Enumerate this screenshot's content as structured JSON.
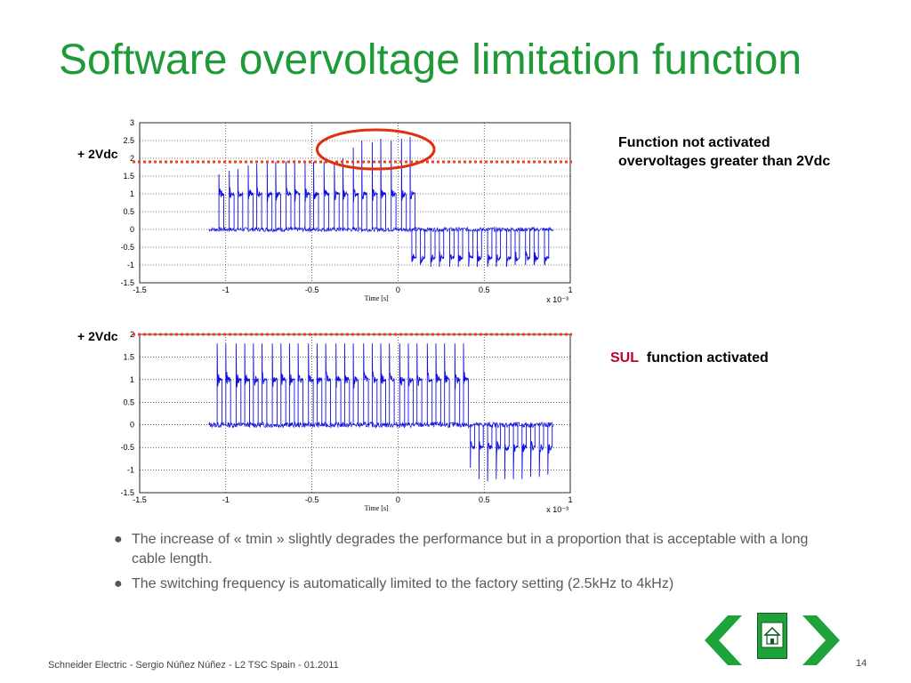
{
  "title": "Software overvoltage limitation function",
  "top_chart_note": {
    "line1": "Function not activated",
    "line2": "overvoltages greater than 2Vdc"
  },
  "bottom_chart_note": {
    "sul": "SUL",
    "text": "function activated"
  },
  "threshold_label_top": "+ 2Vdc",
  "threshold_label_bottom": "+ 2Vdc",
  "bullets": [
    "The increase of « tmin » slightly degrades the performance but in a proportion that is acceptable with a long cable length.",
    "The switching frequency is automatically limited to the factory setting (2.5kHz to 4kHz)"
  ],
  "footer": "Schneider Electric - Sergio Núñez Núñez - L2 TSC Spain - 01.2011",
  "page_number": "14",
  "colors": {
    "title": "#1e9a37",
    "signal": "#1010e0",
    "threshold": "#f04020",
    "highlight_circle": "#e03010",
    "nav_arrows": "#1ea33a",
    "sul": "#c2002f"
  },
  "icons": {
    "prev": "chevron-left-icon",
    "home": "home-icon",
    "next": "chevron-right-icon"
  },
  "chart_data": [
    {
      "type": "line",
      "title": "",
      "xlabel": "Time [s]",
      "xlabel_exponent": "x 10⁻³",
      "ylabel": "",
      "xlim": [
        -1.5,
        1
      ],
      "ylim": [
        -1.5,
        3
      ],
      "xticks": [
        -1.5,
        -1,
        -0.5,
        0,
        0.5,
        1
      ],
      "xtick_labels": [
        "-1.5",
        "-1",
        "-0.5",
        "0",
        "0.5",
        "1"
      ],
      "yticks": [
        -1.5,
        -1,
        -0.5,
        0,
        0.5,
        1,
        1.5,
        2,
        2.5,
        3
      ],
      "ytick_labels": [
        "-1.5",
        "-1",
        "-0.5",
        "0",
        "0.5",
        "1",
        "1.5",
        "2",
        "2.5",
        "3"
      ],
      "grid": true,
      "threshold": 1.9,
      "signal_start": -1.1,
      "signal_end": 0.9,
      "pulse_times_pos": [
        -1.04,
        -0.98,
        -0.93,
        -0.87,
        -0.82,
        -0.76,
        -0.71,
        -0.65,
        -0.6,
        -0.54,
        -0.49,
        -0.43,
        -0.37,
        -0.32,
        -0.26,
        -0.21,
        -0.15,
        -0.1,
        -0.04,
        0.02,
        0.07
      ],
      "pulse_peaks_pos": [
        1.55,
        1.65,
        1.7,
        1.8,
        1.85,
        1.88,
        1.9,
        1.92,
        1.95,
        1.9,
        1.9,
        1.9,
        1.9,
        2.0,
        2.3,
        2.5,
        2.45,
        2.55,
        2.5,
        2.55,
        2.6
      ],
      "pulse_times_neg": [
        0.08,
        0.13,
        0.19,
        0.24,
        0.3,
        0.35,
        0.41,
        0.46,
        0.52,
        0.57,
        0.63,
        0.68,
        0.74,
        0.79,
        0.85
      ],
      "pulse_peaks_neg": [
        -0.9,
        -1.0,
        -1.05,
        -1.05,
        -1.05,
        -1.05,
        -1.05,
        -1.05,
        -1.05,
        -1.05,
        -1.05,
        -1.0,
        -1.0,
        -1.0,
        -0.95
      ],
      "pos_plateau": 1.0,
      "neg_plateau": -0.8,
      "highlight": {
        "x_center": -0.13,
        "y_center": 2.25,
        "x_radius": 0.34,
        "y_radius": 0.55
      }
    },
    {
      "type": "line",
      "title": "",
      "xlabel": "Time [s]",
      "xlabel_exponent": "x 10⁻³",
      "ylabel": "",
      "xlim": [
        -1.5,
        1
      ],
      "ylim": [
        -1.5,
        2
      ],
      "xticks": [
        -1.5,
        -1,
        -0.5,
        0,
        0.5,
        1
      ],
      "xtick_labels": [
        "-1.5",
        "-1",
        "-0.5",
        "0",
        "0.5",
        "1"
      ],
      "yticks": [
        -1.5,
        -1,
        -0.5,
        0,
        0.5,
        1,
        1.5,
        2
      ],
      "ytick_labels": [
        "-1.5",
        "-1",
        "-0.5",
        "0",
        "0.5",
        "1",
        "1.5",
        "2"
      ],
      "grid": true,
      "threshold": 2.0,
      "signal_start": -1.1,
      "signal_end": 0.9,
      "pulse_times_pos": [
        -1.05,
        -1.0,
        -0.94,
        -0.89,
        -0.84,
        -0.79,
        -0.73,
        -0.68,
        -0.63,
        -0.58,
        -0.52,
        -0.47,
        -0.42,
        -0.36,
        -0.31,
        -0.26,
        -0.2,
        -0.15,
        -0.1,
        -0.05,
        0.01,
        0.06,
        0.11,
        0.17,
        0.22,
        0.27,
        0.33,
        0.38
      ],
      "pulse_peaks_pos": [
        1.8,
        1.8,
        1.8,
        1.8,
        1.8,
        1.8,
        1.8,
        1.8,
        1.8,
        1.8,
        1.8,
        1.8,
        1.8,
        1.8,
        1.8,
        1.8,
        1.8,
        1.8,
        1.8,
        1.8,
        1.8,
        1.8,
        1.8,
        1.8,
        1.8,
        1.8,
        1.8,
        1.8
      ],
      "pulse_times_neg": [
        0.42,
        0.47,
        0.52,
        0.57,
        0.62,
        0.67,
        0.72,
        0.77,
        0.82,
        0.87
      ],
      "pulse_peaks_neg": [
        -0.95,
        -1.2,
        -1.25,
        -1.2,
        -1.2,
        -1.2,
        -1.2,
        -1.15,
        -1.15,
        -1.1
      ],
      "pos_plateau": 1.0,
      "neg_plateau": -0.5
    }
  ]
}
